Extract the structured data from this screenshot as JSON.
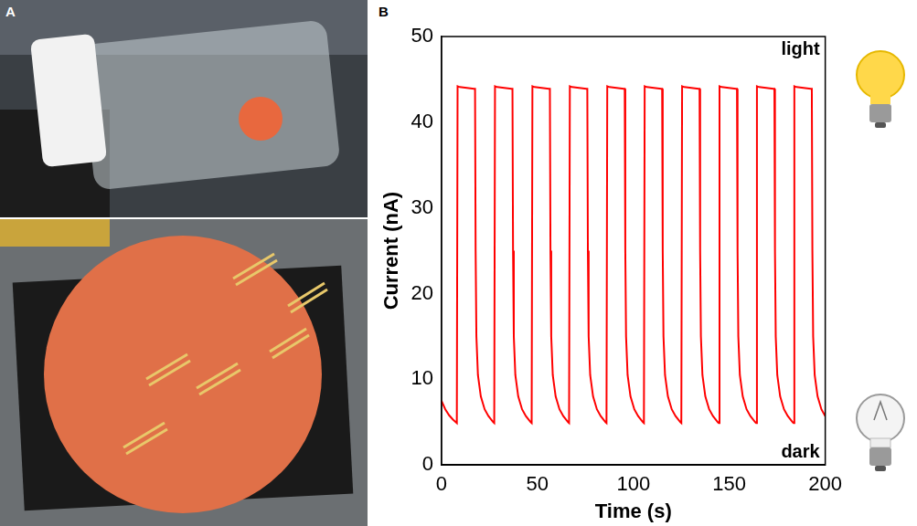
{
  "panel_labels": [
    "A",
    "B"
  ],
  "chart_data": {
    "type": "line",
    "x_label": "Time (s)",
    "y_label": "Current (nA)",
    "annotations": [
      "light",
      "dark"
    ],
    "x": [
      0,
      2,
      4,
      6,
      8,
      8.4,
      9.5,
      17,
      17.5,
      17.8,
      18.2,
      19,
      20.5,
      22.5,
      24.5,
      27,
      27.5,
      27.9,
      29,
      36.5,
      37,
      37.3,
      37.7,
      38.5,
      40,
      42,
      44,
      46.5,
      47,
      47.4,
      48.5,
      56,
      56.5,
      56.8,
      57.2,
      58,
      59.5,
      61.5,
      63.5,
      66,
      66.5,
      66.9,
      68,
      75.5,
      76,
      76.3,
      76.7,
      77.5,
      79,
      81,
      83,
      85.5,
      86,
      86.4,
      87.5,
      95,
      95.5,
      95.8,
      96.2,
      97,
      98.5,
      100.5,
      102.5,
      105,
      105.5,
      105.9,
      107,
      114.5,
      115,
      115.3,
      115.7,
      116.5,
      118,
      120,
      122,
      124.5,
      125,
      125.4,
      126.5,
      134,
      134.5,
      134.8,
      135.2,
      136,
      137.5,
      139.5,
      141.5,
      144,
      144.5,
      144.9,
      146,
      153.5,
      154,
      154.3,
      154.7,
      155.5,
      157,
      159,
      161,
      163.5,
      164,
      164.4,
      165.5,
      173,
      173.5,
      173.8,
      174.2,
      175,
      176.5,
      178.5,
      180.5,
      183,
      183.5,
      183.9,
      185,
      192.5,
      193,
      193.3,
      193.7,
      194.5,
      196,
      198,
      200
    ],
    "values": [
      7.5,
      6.5,
      5.8,
      5.3,
      4.9,
      44.2,
      44.1,
      43.9,
      43.9,
      25,
      15,
      10.5,
      8,
      6.5,
      5.7,
      5.0,
      4.9,
      44.2,
      44.1,
      43.9,
      43.9,
      25,
      15,
      10.5,
      8,
      6.5,
      5.7,
      5.0,
      4.9,
      44.2,
      44.1,
      43.9,
      43.9,
      25,
      15,
      10.5,
      8,
      6.5,
      5.7,
      5.0,
      4.9,
      44.2,
      44.1,
      43.9,
      43.9,
      25,
      15,
      10.5,
      8,
      6.5,
      5.7,
      5.0,
      4.9,
      44.2,
      44.1,
      43.9,
      43.9,
      25,
      15,
      10.5,
      8,
      6.5,
      5.7,
      5.0,
      4.9,
      44.2,
      44.1,
      43.9,
      43.9,
      25,
      15,
      10.5,
      8,
      6.5,
      5.7,
      5.0,
      4.9,
      44.2,
      44.1,
      43.9,
      43.9,
      25,
      15,
      10.5,
      8,
      6.5,
      5.7,
      5.0,
      4.9,
      44.2,
      44.1,
      43.9,
      43.9,
      25,
      15,
      10.5,
      8,
      6.5,
      5.7,
      5.0,
      4.9,
      44.2,
      44.1,
      43.9,
      43.9,
      25,
      15,
      10.5,
      8,
      6.5,
      5.7,
      5.0,
      4.9,
      44.2,
      44.1,
      43.9,
      43.9,
      25,
      15,
      10.5,
      8,
      6.5,
      5.7
    ],
    "color": "#ff0000",
    "xlim": [
      0,
      200
    ],
    "xticks": [
      0,
      50,
      100,
      150,
      200
    ],
    "ylim": [
      0,
      50
    ],
    "yticks": [
      0,
      10,
      20,
      30,
      40,
      50
    ],
    "grid": false
  }
}
